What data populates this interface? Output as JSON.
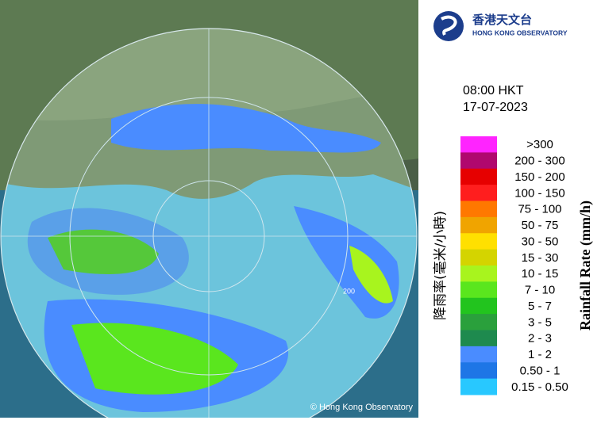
{
  "header": {
    "logo_chinese": "香港天文台",
    "logo_english": "HONG KONG OBSERVATORY"
  },
  "time": "08:00 HKT",
  "date": "17-07-2023",
  "map": {
    "range_label": "200",
    "copyright": "© Hong Kong Observatory"
  },
  "legend": {
    "title_chinese": "降雨率(毫米/小時)",
    "title_english": "Rainfall Rate (mm/h)",
    "items": [
      {
        "label": ">300",
        "color": "#ff24ff"
      },
      {
        "label": "200 - 300",
        "color": "#b0086e"
      },
      {
        "label": "150 - 200",
        "color": "#e60000"
      },
      {
        "label": "100 - 150",
        "color": "#ff1e1e"
      },
      {
        "label": "75 - 100",
        "color": "#ff7800"
      },
      {
        "label": "50 - 75",
        "color": "#f0a400"
      },
      {
        "label": "30 - 50",
        "color": "#ffe000"
      },
      {
        "label": "15 - 30",
        "color": "#d4d400"
      },
      {
        "label": "10 - 15",
        "color": "#a8f41e"
      },
      {
        "label": "7 - 10",
        "color": "#5ae61e"
      },
      {
        "label": "5 - 7",
        "color": "#22c41e"
      },
      {
        "label": "3 - 5",
        "color": "#2aa03c"
      },
      {
        "label": "2 - 3",
        "color": "#1e8a4e"
      },
      {
        "label": "1 - 2",
        "color": "#4a8cff"
      },
      {
        "label": "0.50 - 1",
        "color": "#1e76e6"
      },
      {
        "label": "0.15 - 0.50",
        "color": "#28c8ff"
      }
    ]
  }
}
